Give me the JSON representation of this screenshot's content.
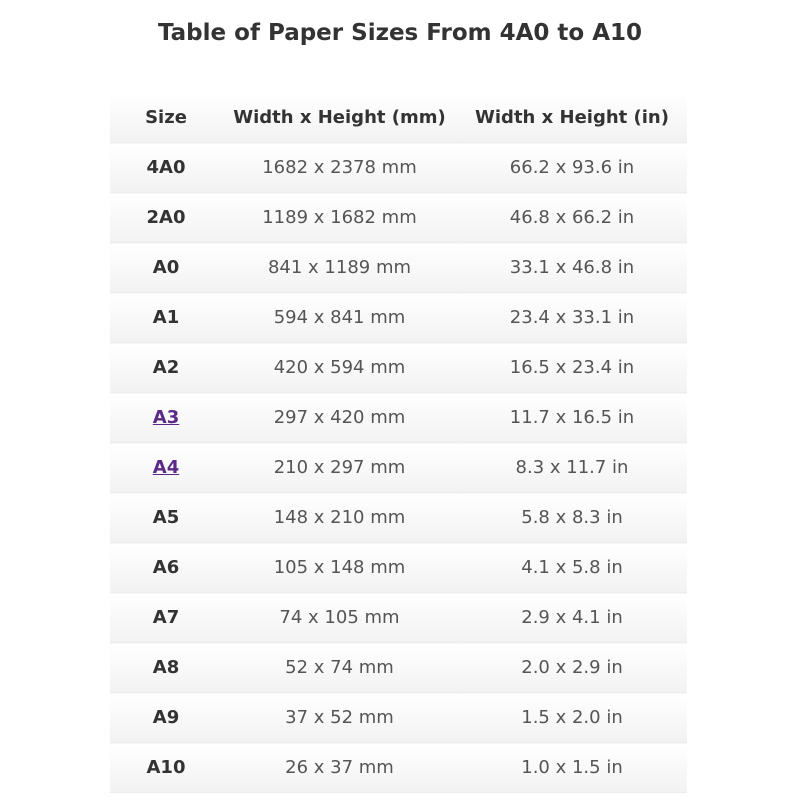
{
  "title": "Table of Paper Sizes From 4A0 to A10",
  "link_color": "#5b2a86",
  "headers": [
    "Size",
    "Width x Height (mm)",
    "Width x Height (in)"
  ],
  "rows": [
    {
      "size": "4A0",
      "mm": "1682 x 2378 mm",
      "in": "66.2 x 93.6 in",
      "link": false
    },
    {
      "size": "2A0",
      "mm": "1189 x 1682 mm",
      "in": "46.8 x 66.2 in",
      "link": false
    },
    {
      "size": "A0",
      "mm": "841 x 1189 mm",
      "in": "33.1 x 46.8 in",
      "link": false
    },
    {
      "size": "A1",
      "mm": "594 x 841 mm",
      "in": "23.4 x 33.1 in",
      "link": false
    },
    {
      "size": "A2",
      "mm": "420 x 594 mm",
      "in": "16.5 x 23.4 in",
      "link": false
    },
    {
      "size": "A3",
      "mm": "297 x 420 mm",
      "in": "11.7 x 16.5 in",
      "link": true
    },
    {
      "size": "A4",
      "mm": "210 x 297 mm",
      "in": "8.3 x 11.7 in",
      "link": true
    },
    {
      "size": "A5",
      "mm": "148 x 210 mm",
      "in": "5.8 x 8.3 in",
      "link": false
    },
    {
      "size": "A6",
      "mm": "105 x 148 mm",
      "in": "4.1 x 5.8 in",
      "link": false
    },
    {
      "size": "A7",
      "mm": "74 x 105 mm",
      "in": "2.9 x 4.1 in",
      "link": false
    },
    {
      "size": "A8",
      "mm": "52 x 74 mm",
      "in": "2.0 x 2.9 in",
      "link": false
    },
    {
      "size": "A9",
      "mm": "37 x 52 mm",
      "in": "1.5 x 2.0 in",
      "link": false
    },
    {
      "size": "A10",
      "mm": "26 x 37 mm",
      "in": "1.0 x 1.5 in",
      "link": false
    }
  ]
}
